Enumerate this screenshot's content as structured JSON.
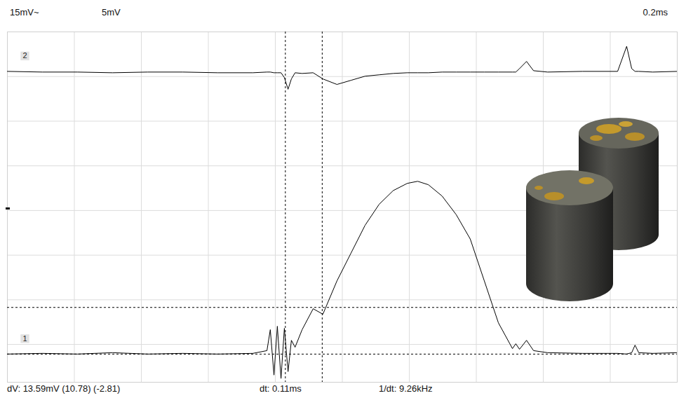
{
  "chart_data": {
    "type": "line",
    "annotations": [
      "15mV~",
      "5mV",
      "0.2ms",
      "dV: 13.59mV  (10.78) (-2.81)",
      "dt: 0.11ms",
      "1/dt: 9.26kHz"
    ],
    "x": [
      0.0,
      0.105,
      0.209,
      0.314,
      0.419,
      0.524,
      0.628,
      0.733,
      0.775,
      0.785,
      0.796,
      0.806,
      0.817,
      0.827,
      0.838,
      0.848,
      0.859,
      0.88,
      0.913,
      0.942,
      0.984,
      1.026,
      1.068,
      1.11,
      1.152,
      1.194,
      1.225,
      1.257,
      1.298,
      1.34,
      1.382,
      1.424,
      1.466,
      1.508,
      1.518,
      1.529,
      1.55,
      1.571,
      1.613,
      1.717,
      1.822,
      1.849,
      1.864,
      1.874,
      1.885,
      1.927,
      2.0
    ],
    "series": [
      {
        "name": "2",
        "color": "#000000",
        "values": [
          79.5,
          79.3,
          79.3,
          79.1,
          79.3,
          79.3,
          79.1,
          79.1,
          79.3,
          79.3,
          79.1,
          79.1,
          79.1,
          77.7,
          74.3,
          77.3,
          79.1,
          78.9,
          79.1,
          77.3,
          75.7,
          76.9,
          78.1,
          78.5,
          78.9,
          79.1,
          79.1,
          79.1,
          79.3,
          79.3,
          79.3,
          79.3,
          79.3,
          79.3,
          79.3,
          80.3,
          82.4,
          79.7,
          79.3,
          79.5,
          79.5,
          86.8,
          80.3,
          79.5,
          79.5,
          79.3,
          79.5
        ]
      },
      {
        "name": "1",
        "color": "#000000",
        "values": [
          -2.8,
          -2.6,
          -2.8,
          -2.4,
          -2.8,
          -2.6,
          -2.8,
          -2.6,
          -1.8,
          4.3,
          -8.9,
          5.3,
          -9.9,
          4.7,
          -7.9,
          1.2,
          -0.8,
          4.3,
          10.4,
          8.8,
          18.5,
          26.6,
          34.7,
          40.8,
          44.8,
          46.9,
          47.5,
          46.5,
          43.2,
          37.8,
          30.7,
          18.5,
          6.3,
          -1.2,
          0.2,
          -1.4,
          1.2,
          -1.8,
          -2.4,
          -2.6,
          -2.6,
          -2.8,
          -2.4,
          -0.2,
          -2.4,
          -2.6,
          -2.4
        ]
      }
    ],
    "cursors_x": [
      0.83,
      0.94
    ],
    "cursors_y": [
      10.78,
      -2.81
    ],
    "xlim": [
      0,
      2
    ],
    "xticks": [
      0,
      0.2,
      0.4,
      0.6,
      0.8,
      1,
      1.2,
      1.4,
      1.6,
      1.8,
      2
    ],
    "ylim": [
      -11,
      91
    ],
    "yticks": [
      0,
      13,
      26,
      39,
      52,
      65,
      78,
      91
    ],
    "grid": true,
    "tick_labels": false
  }
}
